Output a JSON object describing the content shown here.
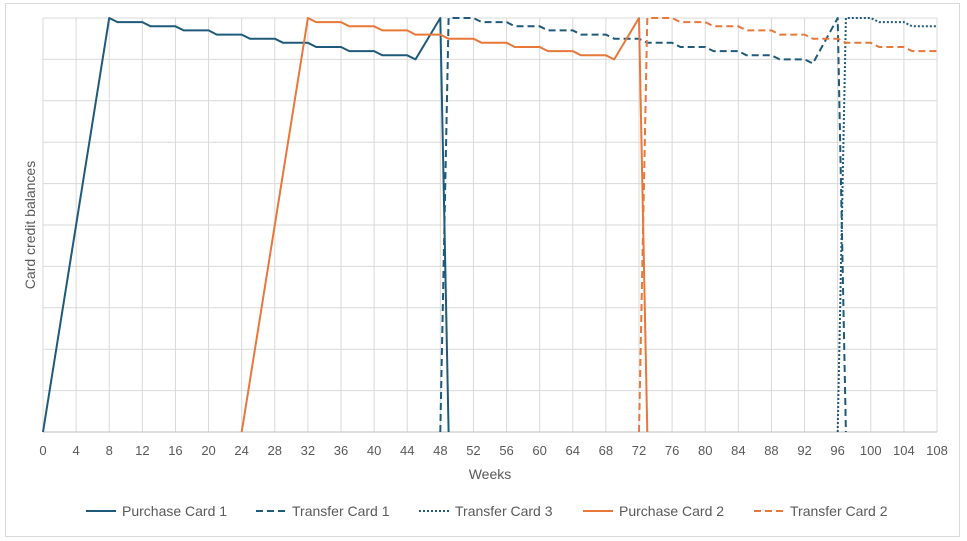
{
  "chart_data": {
    "type": "line",
    "title": "",
    "xlabel": "Weeks",
    "ylabel": "Card credit balances",
    "xlim": [
      0,
      108
    ],
    "ylim": [
      0,
      100
    ],
    "x_ticks": [
      0,
      4,
      8,
      12,
      16,
      20,
      24,
      28,
      32,
      36,
      40,
      44,
      48,
      52,
      56,
      60,
      64,
      68,
      72,
      76,
      80,
      84,
      88,
      92,
      96,
      100,
      104,
      108
    ],
    "y_gridlines": 10,
    "y_tick_labels_shown": false,
    "grid": true,
    "legend_position": "bottom",
    "colors": {
      "blue": "#1f5a7a",
      "orange": "#e8773a",
      "grid": "#d9d9d9"
    },
    "series": [
      {
        "name": "Purchase Card 1",
        "color": "#1f5a7a",
        "style": "solid",
        "x": [
          0,
          8,
          9,
          12,
          13,
          16,
          17,
          20,
          21,
          24,
          25,
          28,
          29,
          32,
          33,
          36,
          37,
          40,
          41,
          44,
          45,
          48,
          49
        ],
        "y": [
          0,
          100,
          99,
          99,
          98,
          98,
          97,
          97,
          96,
          96,
          95,
          95,
          94,
          94,
          93,
          93,
          92,
          92,
          91,
          91,
          90,
          100,
          0
        ]
      },
      {
        "name": "Transfer Card 1",
        "color": "#1f5a7a",
        "style": "dashed",
        "x": [
          48,
          49,
          52,
          53,
          56,
          57,
          60,
          61,
          64,
          65,
          68,
          69,
          72,
          73,
          76,
          77,
          80,
          81,
          84,
          85,
          88,
          89,
          92,
          93,
          96,
          97
        ],
        "y": [
          0,
          100,
          100,
          99,
          99,
          98,
          98,
          97,
          97,
          96,
          96,
          95,
          95,
          94,
          94,
          93,
          93,
          92,
          92,
          91,
          91,
          90,
          90,
          89,
          100,
          0
        ]
      },
      {
        "name": "Transfer Card 3",
        "color": "#1f5a7a",
        "style": "dotted",
        "x": [
          96,
          97,
          100,
          101,
          104,
          105,
          108
        ],
        "y": [
          0,
          100,
          100,
          99,
          99,
          98,
          98
        ]
      },
      {
        "name": "Purchase Card 2",
        "color": "#e8773a",
        "style": "solid",
        "x": [
          24,
          32,
          33,
          36,
          37,
          40,
          41,
          44,
          45,
          48,
          49,
          52,
          53,
          56,
          57,
          60,
          61,
          64,
          65,
          68,
          69,
          72,
          73
        ],
        "y": [
          0,
          100,
          99,
          99,
          98,
          98,
          97,
          97,
          96,
          96,
          95,
          95,
          94,
          94,
          93,
          93,
          92,
          92,
          91,
          91,
          90,
          100,
          0
        ]
      },
      {
        "name": "Transfer Card 2",
        "color": "#e8773a",
        "style": "dashed",
        "x": [
          72,
          73,
          76,
          77,
          80,
          81,
          84,
          85,
          88,
          89,
          92,
          93,
          96,
          97,
          100,
          101,
          104,
          105,
          108
        ],
        "y": [
          0,
          100,
          100,
          99,
          99,
          98,
          98,
          97,
          97,
          96,
          96,
          95,
          95,
          94,
          94,
          93,
          93,
          92,
          92
        ]
      }
    ]
  }
}
